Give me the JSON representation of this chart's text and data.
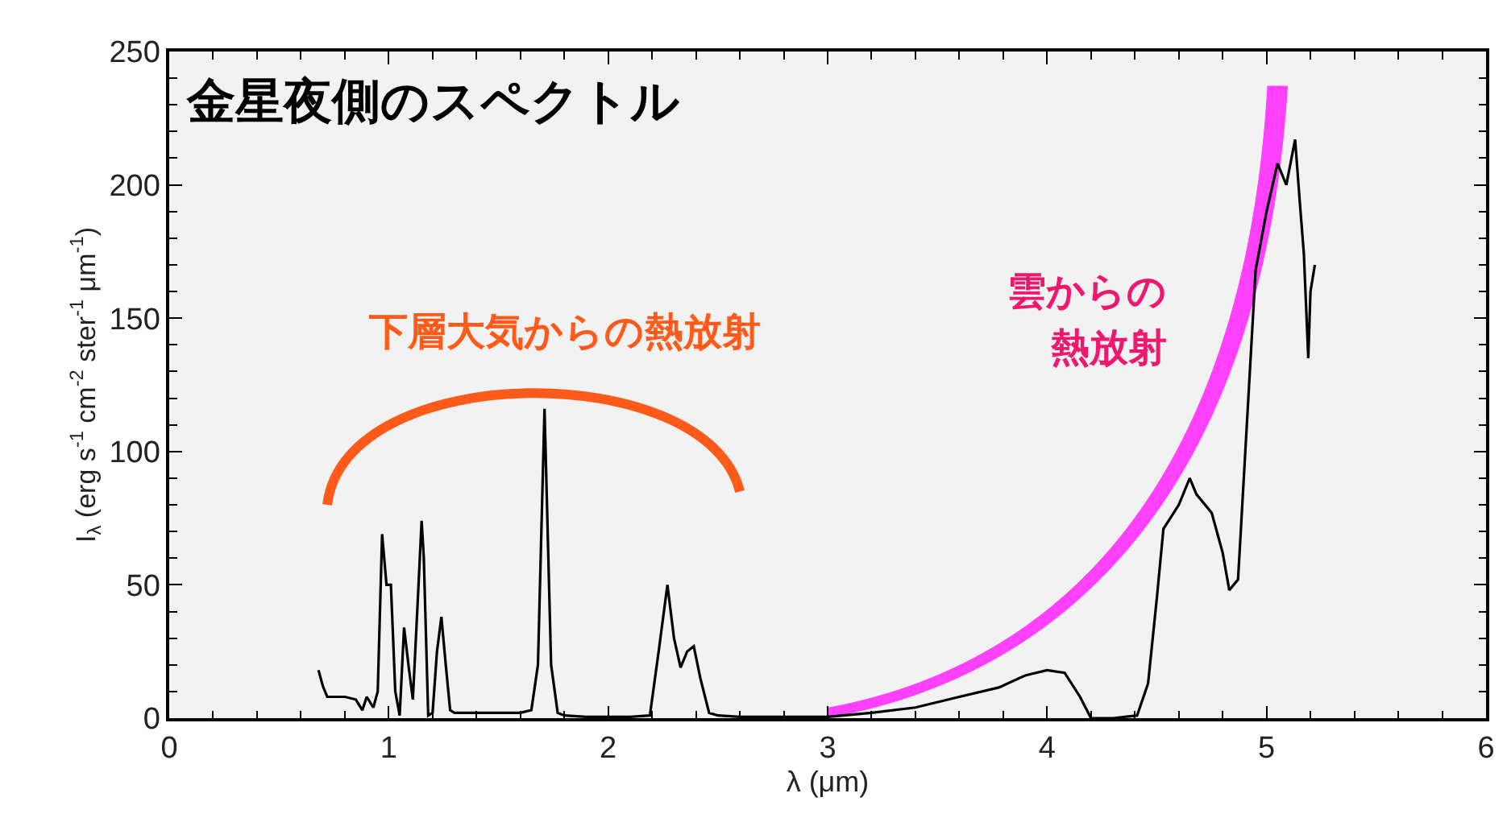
{
  "chart_data": {
    "type": "line",
    "title": "金星夜側のスペクトル",
    "xlabel": "λ (μm)",
    "ylabel": "I$_{λ}$ (erg s$^{-1}$ cm$^{-2}$ ster$^{-1}$ μm$^{-1}$)",
    "annotations": [
      "下層大気からの熱放射",
      "雲からの",
      "熱放射"
    ],
    "xlim": [
      0,
      6
    ],
    "xticks": [
      0,
      1,
      2,
      3,
      4,
      5,
      6
    ],
    "ylim": [
      0,
      250
    ],
    "yticks": [
      0,
      50,
      100,
      150,
      200,
      250
    ],
    "grid": false,
    "marker": "none",
    "line_style": "solid",
    "series": [
      {
        "color": "#000000",
        "x": [
          0.68,
          0.7,
          0.72,
          0.8,
          0.85,
          0.88,
          0.9,
          0.93,
          0.95,
          0.97,
          0.99,
          1.01,
          1.03,
          1.05,
          1.07,
          1.09,
          1.11,
          1.13,
          1.15,
          1.16,
          1.18,
          1.2,
          1.22,
          1.24,
          1.26,
          1.28,
          1.3,
          1.4,
          1.5,
          1.6,
          1.65,
          1.68,
          1.71,
          1.74,
          1.77,
          1.8,
          1.9,
          2.0,
          2.1,
          2.19,
          2.23,
          2.27,
          2.3,
          2.33,
          2.36,
          2.39,
          2.42,
          2.46,
          2.5,
          2.6,
          2.8,
          3.0,
          3.2,
          3.4,
          3.6,
          3.78,
          3.9,
          4.0,
          4.08,
          4.15,
          4.2,
          4.3,
          4.41,
          4.46,
          4.5,
          4.53,
          4.6,
          4.65,
          4.68,
          4.75,
          4.8,
          4.83,
          4.87,
          4.91,
          4.95,
          5.0,
          5.05,
          5.09,
          5.13,
          5.15,
          5.17,
          5.19,
          5.2,
          5.22
        ],
        "values": [
          18,
          12,
          8,
          8,
          7,
          3,
          8,
          4,
          10,
          69,
          50,
          50,
          10,
          1,
          34,
          20,
          7,
          40,
          74,
          60,
          1,
          2,
          25,
          38,
          20,
          3,
          2,
          2,
          2,
          2,
          3,
          20,
          116,
          20,
          2,
          1,
          0.5,
          0.5,
          0.5,
          1,
          25,
          50,
          30,
          19,
          25,
          27,
          15,
          2,
          1,
          0.5,
          0.5,
          0.5,
          2,
          4,
          8,
          11.5,
          16,
          18,
          17,
          8,
          0,
          0,
          1,
          13,
          45,
          71,
          80,
          90,
          84,
          77,
          62,
          48,
          52,
          110,
          168,
          190,
          208,
          200,
          217,
          195,
          174,
          135,
          160,
          170
        ]
      }
    ]
  }
}
